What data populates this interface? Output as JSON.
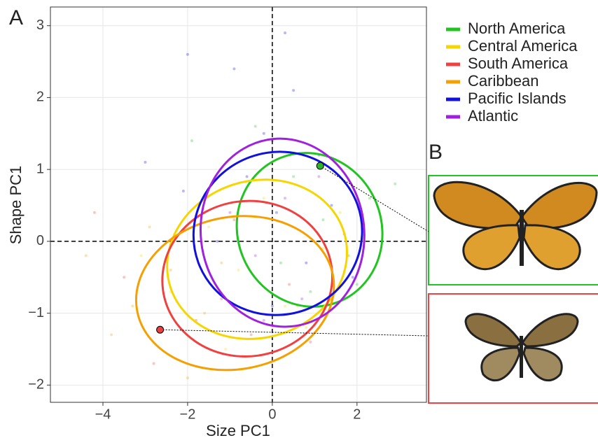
{
  "chart_data": {
    "type": "scatter",
    "panel_labels": [
      "A",
      "B"
    ],
    "x_label": "Size PC1",
    "y_label": "Shape PC1",
    "xlim": [
      -5.24,
      3.64
    ],
    "ylim": [
      -2.24,
      3.26
    ],
    "xticks": [
      {
        "value": -4,
        "label": "−4"
      },
      {
        "value": -2,
        "label": "−2"
      },
      0,
      2
    ],
    "yticks": [
      {
        "value": -2,
        "label": "−2"
      },
      {
        "value": -1,
        "label": "−1"
      },
      0,
      1,
      2,
      3
    ],
    "grid": true,
    "ref_lines": {
      "x": 0,
      "y": 0
    },
    "series": [
      {
        "name": "North America",
        "color": "#22c422",
        "x": [
          0.5,
          1.2,
          1.8,
          2.3,
          -0.4,
          0.9,
          1.5,
          2.9,
          -1.9,
          0.2,
          1.1,
          2.0
        ],
        "y": [
          0.9,
          0.3,
          -0.2,
          0.6,
          1.6,
          -0.7,
          1.1,
          0.8,
          1.4,
          -0.3,
          0.0,
          -0.6
        ],
        "center": [
          0.88,
          0.16
        ],
        "radii": [
          1.7,
          1.08
        ],
        "angle": -22
      },
      {
        "name": "Central America",
        "color": "#f5d600",
        "x": [
          -0.8,
          -1.5,
          0.3,
          1.2,
          -2.4,
          -0.2,
          0.8,
          -1.1,
          1.6,
          -3.1
        ],
        "y": [
          -0.4,
          0.2,
          -0.9,
          -0.1,
          -0.7,
          0.6,
          -1.2,
          -1.5,
          0.4,
          -0.2
        ],
        "center": [
          -0.36,
          -0.25
        ],
        "radii": [
          2.15,
          1.09
        ],
        "angle": -18
      },
      {
        "name": "South America",
        "color": "#f04040",
        "x": [
          -1.2,
          -0.5,
          -2.2,
          0.4,
          -3.5,
          -1.8,
          0.9,
          -0.9,
          -4.2,
          -2.8
        ],
        "y": [
          -0.8,
          -1.3,
          0.1,
          -0.6,
          -0.5,
          -1.1,
          -1.4,
          0.3,
          0.4,
          -1.7
        ],
        "center": [
          -0.59,
          -0.52
        ],
        "radii": [
          2.01,
          1.08
        ],
        "angle": -8
      },
      {
        "name": "Caribbean",
        "color": "#f5a000",
        "x": [
          -2.4,
          -1.6,
          -3.3,
          -0.7,
          -2.9,
          -1.2,
          -4.4,
          -3.8,
          0.6,
          -2.0
        ],
        "y": [
          -0.4,
          -1.0,
          -0.9,
          -1.6,
          0.2,
          -0.3,
          -0.2,
          -1.3,
          -0.9,
          -1.9
        ],
        "center": [
          -0.88,
          -0.72
        ],
        "radii": [
          2.35,
          1.06
        ],
        "angle": -10
      },
      {
        "name": "Pacific Islands",
        "color": "#1010e0",
        "x": [
          0.1,
          -0.6,
          0.8,
          1.4,
          -1.3,
          -0.2,
          0.5,
          -2.1,
          1.9,
          -0.9,
          0.0,
          1.1,
          -3.0,
          -2.0,
          0.3
        ],
        "y": [
          0.4,
          0.9,
          -0.3,
          0.5,
          0.0,
          1.5,
          2.1,
          0.7,
          -0.5,
          2.4,
          -0.9,
          1.2,
          1.1,
          2.6,
          2.9
        ],
        "center": [
          0.13,
          0.11
        ],
        "radii": [
          2.0,
          1.13
        ],
        "angle": -20
      },
      {
        "name": "Atlantic",
        "color": "#a020e0",
        "x": [
          0.3,
          -0.4,
          1.1,
          0.7,
          -1.0,
          1.7,
          0.0,
          -0.2
        ],
        "y": [
          0.6,
          -0.2,
          0.9,
          -0.8,
          0.4,
          0.1,
          1.4,
          -1.1
        ],
        "center": [
          0.24,
          0.12
        ],
        "radii": [
          1.93,
          1.31
        ],
        "angle": -6
      }
    ],
    "highlights": [
      {
        "x": 1.13,
        "y": 1.05,
        "color": "#2bb52b"
      },
      {
        "x": -2.65,
        "y": -1.23,
        "color": "#e84040"
      }
    ]
  }
}
